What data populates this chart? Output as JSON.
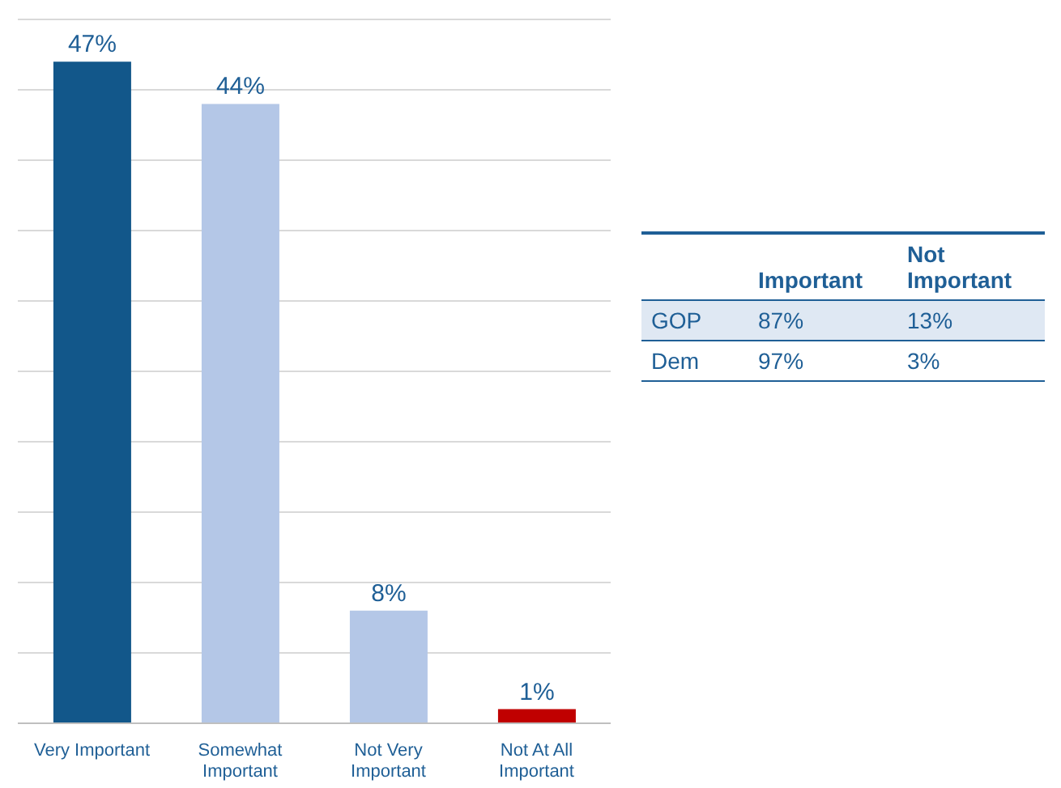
{
  "chart_data": [
    {
      "type": "bar",
      "categories": [
        "Very Important",
        "Somewhat Important",
        "Not Very Important",
        "Not At All Important"
      ],
      "values": [
        47,
        44,
        8,
        1
      ],
      "colors": [
        "#12578a",
        "#b4c7e7",
        "#b4c7e7",
        "#c00000"
      ],
      "value_labels": [
        "47%",
        "44%",
        "8%",
        "1%"
      ],
      "ylim": [
        0,
        50
      ],
      "yticks": [
        {
          "value": 0,
          "label": null
        },
        {
          "value": 5,
          "label": null
        },
        {
          "value": 10,
          "label": null
        },
        {
          "value": 15,
          "label": null
        },
        {
          "value": 20,
          "label": null
        },
        {
          "value": 25,
          "label": null
        },
        {
          "value": 30,
          "label": null
        },
        {
          "value": 35,
          "label": null
        },
        {
          "value": 40,
          "label": null
        },
        {
          "value": 45,
          "label": null
        },
        {
          "value": 50,
          "label": null
        }
      ],
      "grid": "y",
      "tick_labels": "x"
    },
    {
      "type": "other",
      "categories": [
        "Important",
        "Not Important"
      ],
      "y_categories": [
        "GOP",
        "Dem"
      ],
      "cells": [
        [
          "87%",
          "13%"
        ],
        [
          "97%",
          "3%"
        ]
      ]
    }
  ]
}
